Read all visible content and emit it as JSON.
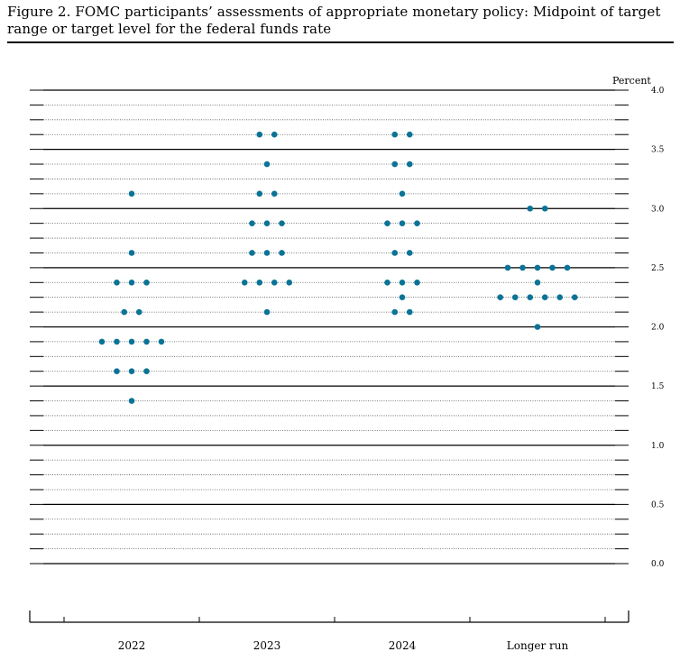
{
  "title": "Figure 2.  FOMC participants’ assessments of appropriate monetary policy:  Midpoint of target range or target level for the federal funds rate",
  "colors": {
    "dot": "#0a7396",
    "axis": "#000000",
    "grid": "#555555"
  },
  "chart_data": {
    "type": "scatter",
    "title": "Figure 2.  FOMC participants’ assessments of appropriate monetary policy:  Midpoint of target range or target level for the federal funds rate",
    "xlabel": "",
    "ylabel": "Percent",
    "ylim": [
      0,
      4
    ],
    "yticks": [
      "0.0",
      "0.5",
      "1.0",
      "1.5",
      "2.0",
      "2.5",
      "3.0",
      "3.5",
      "4.0"
    ],
    "gridlines_every": 0.125,
    "grid": true,
    "categories": [
      "2022",
      "2023",
      "2024",
      "Longer run"
    ],
    "points": [
      {
        "category": "2022",
        "rates": [
          {
            "rate": 3.125,
            "count": 1
          },
          {
            "rate": 2.625,
            "count": 1
          },
          {
            "rate": 2.375,
            "count": 3
          },
          {
            "rate": 2.125,
            "count": 2
          },
          {
            "rate": 1.875,
            "count": 5
          },
          {
            "rate": 1.625,
            "count": 3
          },
          {
            "rate": 1.375,
            "count": 1
          }
        ]
      },
      {
        "category": "2023",
        "rates": [
          {
            "rate": 3.625,
            "count": 2
          },
          {
            "rate": 3.375,
            "count": 1
          },
          {
            "rate": 3.125,
            "count": 2
          },
          {
            "rate": 2.875,
            "count": 3
          },
          {
            "rate": 2.625,
            "count": 3
          },
          {
            "rate": 2.375,
            "count": 4
          },
          {
            "rate": 2.125,
            "count": 1
          }
        ]
      },
      {
        "category": "2024",
        "rates": [
          {
            "rate": 3.625,
            "count": 2
          },
          {
            "rate": 3.375,
            "count": 2
          },
          {
            "rate": 3.125,
            "count": 1
          },
          {
            "rate": 2.875,
            "count": 3
          },
          {
            "rate": 2.625,
            "count": 2
          },
          {
            "rate": 2.375,
            "count": 3
          },
          {
            "rate": 2.25,
            "count": 1
          },
          {
            "rate": 2.125,
            "count": 2
          }
        ]
      },
      {
        "category": "Longer run",
        "rates": [
          {
            "rate": 3.0,
            "count": 2
          },
          {
            "rate": 2.5,
            "count": 5
          },
          {
            "rate": 2.375,
            "count": 1
          },
          {
            "rate": 2.25,
            "count": 6
          },
          {
            "rate": 2.0,
            "count": 1
          }
        ]
      }
    ]
  }
}
